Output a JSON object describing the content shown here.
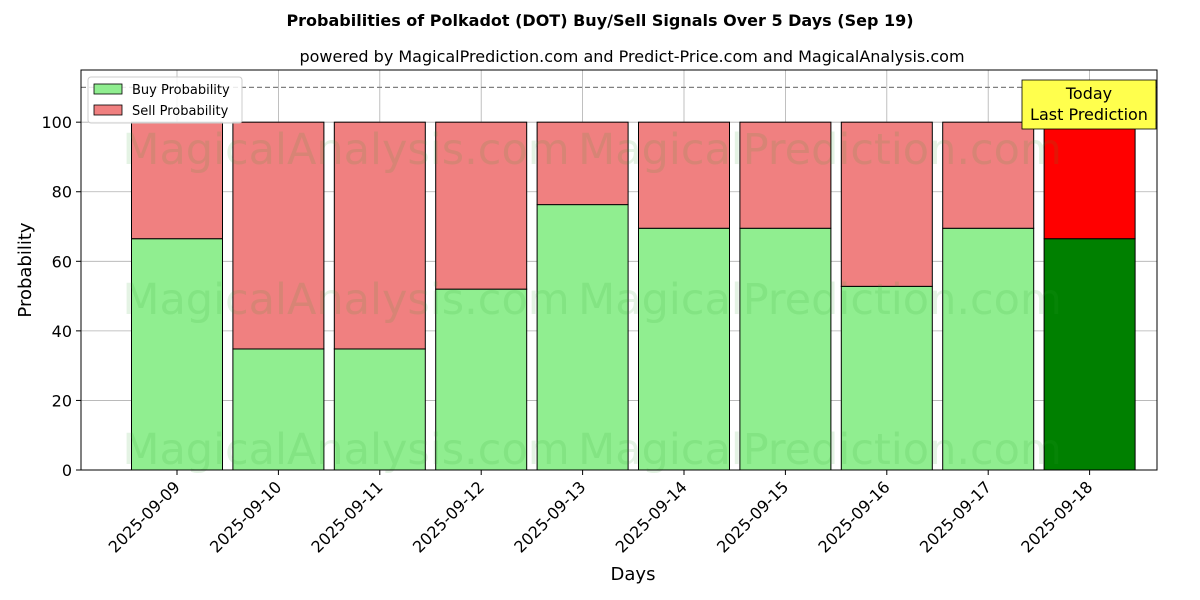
{
  "chart_data": {
    "type": "bar",
    "stacked": true,
    "title": "Probabilities of Polkadot (DOT) Buy/Sell Signals Over 5 Days (Sep 19)",
    "subtitle": "powered by MagicalPrediction.com and Predict-Price.com and MagicalAnalysis.com",
    "xlabel": "Days",
    "ylabel": "Probability",
    "ylim": [
      0,
      115
    ],
    "yticks": [
      0,
      20,
      40,
      60,
      80,
      100
    ],
    "grid": true,
    "reference_line": 110,
    "categories": [
      "2025-09-09",
      "2025-09-10",
      "2025-09-11",
      "2025-09-12",
      "2025-09-13",
      "2025-09-14",
      "2025-09-15",
      "2025-09-16",
      "2025-09-17",
      "2025-09-18"
    ],
    "series": [
      {
        "name": "Buy Probability",
        "color": "#90ee90",
        "highlight_color": "#008000",
        "values": [
          66.5,
          34.8,
          34.8,
          52.0,
          76.3,
          69.5,
          69.5,
          52.8,
          69.5,
          66.5
        ]
      },
      {
        "name": "Sell Probability",
        "color": "#f08080",
        "highlight_color": "#ff0000",
        "values": [
          33.5,
          65.2,
          65.2,
          48.0,
          23.7,
          30.5,
          30.5,
          47.2,
          30.5,
          33.5
        ]
      }
    ],
    "highlight_index": 9,
    "legend_position": "top-left",
    "annotation": {
      "line1": "Today",
      "line2": "Last Prediction",
      "background": "#ffff4d"
    },
    "watermarks": [
      "MagicalAnalysis.com",
      "MagicalPrediction.com"
    ]
  }
}
